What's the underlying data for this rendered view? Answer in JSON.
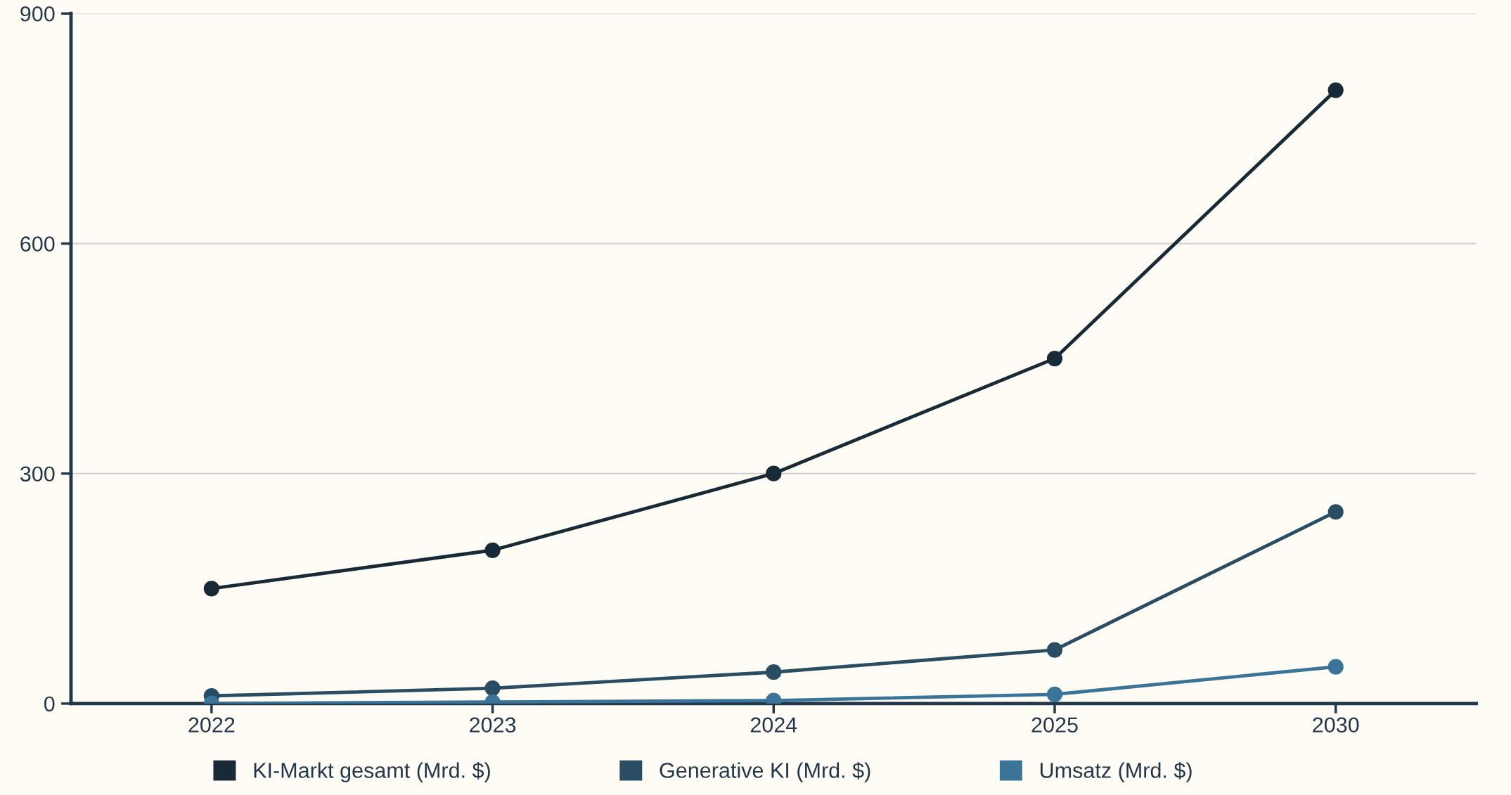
{
  "chart_data": {
    "type": "line",
    "categories": [
      "2022",
      "2023",
      "2024",
      "2025",
      "2030"
    ],
    "series": [
      {
        "name": "KI-Markt gesamt (Mrd. $)",
        "color": "#172a36",
        "values": [
          150,
          200,
          300,
          450,
          800
        ]
      },
      {
        "name": "Generative KI (Mrd. $)",
        "color": "#2a4d63",
        "values": [
          10,
          20,
          41,
          70,
          250
        ]
      },
      {
        "name": "Umsatz (Mrd. $)",
        "color": "#3a7499",
        "values": [
          0,
          2,
          4,
          12,
          48
        ]
      }
    ],
    "ylim": [
      0,
      900
    ],
    "yticks": [
      0,
      300,
      600,
      900
    ],
    "grid": "y",
    "legend": "bottom",
    "marker": "circle",
    "line_style": "solid"
  }
}
